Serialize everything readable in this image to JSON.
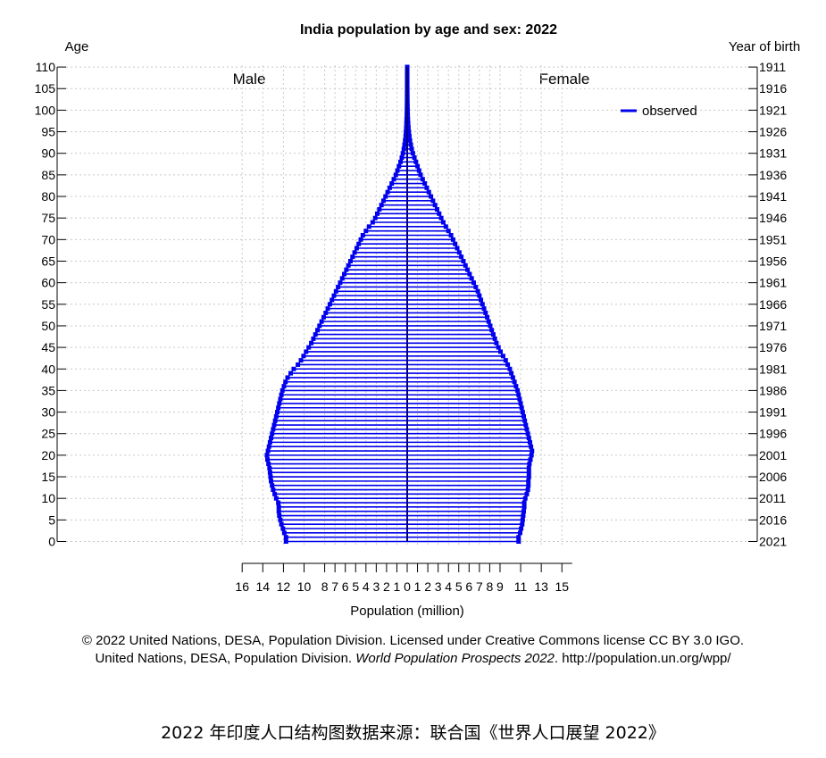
{
  "chart_data": {
    "type": "bar",
    "orientation": "horizontal-pyramid",
    "title": "India population by age and sex: 2022",
    "left_axis_label": "Age",
    "right_axis_label": "Year of birth",
    "xlabel": "Population (million)",
    "left_group_label": "Male",
    "right_group_label": "Female",
    "legend": {
      "label": "observed",
      "color": "#0000ee",
      "position": "top-right"
    },
    "grid": true,
    "age_ticks": [
      0,
      5,
      10,
      15,
      20,
      25,
      30,
      35,
      40,
      45,
      50,
      55,
      60,
      65,
      70,
      75,
      80,
      85,
      90,
      95,
      100,
      105,
      110
    ],
    "year_ticks": [
      "2021",
      "2016",
      "2011",
      "2006",
      "2001",
      "1996",
      "1991",
      "1986",
      "1981",
      "1976",
      "1971",
      "1966",
      "1961",
      "1956",
      "1951",
      "1946",
      "1941",
      "1936",
      "1931",
      "1926",
      "1921",
      "1916",
      "1911"
    ],
    "x_tick_labels": {
      "male": [
        "16",
        "14",
        "12",
        "10",
        "8",
        "7",
        "6",
        "5",
        "4",
        "3",
        "2",
        "1",
        "0"
      ],
      "female": [
        "1",
        "2",
        "3",
        "4",
        "5",
        "6",
        "7",
        "8",
        "9",
        "11",
        "13",
        "15"
      ]
    },
    "ages": [
      0,
      1,
      2,
      3,
      4,
      5,
      6,
      7,
      8,
      9,
      10,
      11,
      12,
      13,
      14,
      15,
      16,
      17,
      18,
      19,
      20,
      21,
      22,
      23,
      24,
      25,
      26,
      27,
      28,
      29,
      30,
      31,
      32,
      33,
      34,
      35,
      36,
      37,
      38,
      39,
      40,
      41,
      42,
      43,
      44,
      45,
      46,
      47,
      48,
      49,
      50,
      51,
      52,
      53,
      54,
      55,
      56,
      57,
      58,
      59,
      60,
      61,
      62,
      63,
      64,
      65,
      66,
      67,
      68,
      69,
      70,
      71,
      72,
      73,
      74,
      75,
      76,
      77,
      78,
      79,
      80,
      81,
      82,
      83,
      84,
      85,
      86,
      87,
      88,
      89,
      90,
      91,
      92,
      93,
      94,
      95,
      96,
      97,
      98,
      99,
      100,
      101,
      102,
      103,
      104,
      105,
      106,
      107,
      108,
      109,
      110
    ],
    "series": [
      {
        "name": "Male",
        "values": [
          11.75,
          11.75,
          11.92,
          12.05,
          12.2,
          12.3,
          12.4,
          12.45,
          12.45,
          12.5,
          12.7,
          12.85,
          13.0,
          13.1,
          13.2,
          13.25,
          13.3,
          13.35,
          13.45,
          13.55,
          13.6,
          13.5,
          13.4,
          13.3,
          13.2,
          13.1,
          13.0,
          12.9,
          12.8,
          12.7,
          12.6,
          12.5,
          12.4,
          12.3,
          12.2,
          12.1,
          11.95,
          11.8,
          11.6,
          11.3,
          11.0,
          10.6,
          10.3,
          10.05,
          9.8,
          9.55,
          9.3,
          9.1,
          8.9,
          8.7,
          8.5,
          8.3,
          8.1,
          7.9,
          7.7,
          7.5,
          7.3,
          7.1,
          6.9,
          6.7,
          6.5,
          6.3,
          6.1,
          5.9,
          5.7,
          5.5,
          5.3,
          5.1,
          4.9,
          4.7,
          4.5,
          4.3,
          4.0,
          3.7,
          3.35,
          3.1,
          2.9,
          2.7,
          2.5,
          2.3,
          2.1,
          1.9,
          1.7,
          1.5,
          1.3,
          1.1,
          0.95,
          0.8,
          0.65,
          0.52,
          0.42,
          0.33,
          0.26,
          0.2,
          0.15,
          0.12,
          0.09,
          0.07,
          0.055,
          0.04,
          0.03,
          0.022,
          0.016,
          0.012,
          0.009,
          0.007,
          0.005,
          0.004,
          0.003,
          0.002,
          0.001
        ]
      },
      {
        "name": "Female",
        "values": [
          10.8,
          10.8,
          10.95,
          11.05,
          11.15,
          11.2,
          11.25,
          11.3,
          11.35,
          11.35,
          11.45,
          11.6,
          11.7,
          11.75,
          11.75,
          11.8,
          11.8,
          11.8,
          11.85,
          11.95,
          12.05,
          12.1,
          12.0,
          11.9,
          11.8,
          11.7,
          11.6,
          11.5,
          11.4,
          11.3,
          11.2,
          11.1,
          11.0,
          10.9,
          10.8,
          10.7,
          10.55,
          10.4,
          10.25,
          10.1,
          9.95,
          9.75,
          9.55,
          9.3,
          9.05,
          8.85,
          8.65,
          8.5,
          8.35,
          8.2,
          8.05,
          7.9,
          7.75,
          7.6,
          7.45,
          7.3,
          7.15,
          7.0,
          6.85,
          6.65,
          6.45,
          6.25,
          6.05,
          5.85,
          5.65,
          5.45,
          5.25,
          5.05,
          4.85,
          4.65,
          4.45,
          4.25,
          4.0,
          3.75,
          3.5,
          3.3,
          3.1,
          2.9,
          2.7,
          2.5,
          2.3,
          2.1,
          1.9,
          1.7,
          1.5,
          1.3,
          1.15,
          1.0,
          0.85,
          0.7,
          0.55,
          0.44,
          0.35,
          0.27,
          0.21,
          0.16,
          0.12,
          0.09,
          0.07,
          0.05,
          0.04,
          0.03,
          0.022,
          0.016,
          0.012,
          0.009,
          0.007,
          0.005,
          0.004,
          0.003,
          0.002
        ]
      }
    ]
  },
  "credit": {
    "line1": "© 2022 United Nations, DESA, Population Division. Licensed under Creative Commons license CC BY 3.0 IGO.",
    "line2_prefix": "United Nations, DESA, Population Division. ",
    "line2_italic": "World Population Prospects 2022",
    "line2_suffix": ". http://population.un.org/wpp/"
  },
  "caption": "2022 年印度人口结构图数据来源：联合国《世界人口展望 2022》"
}
